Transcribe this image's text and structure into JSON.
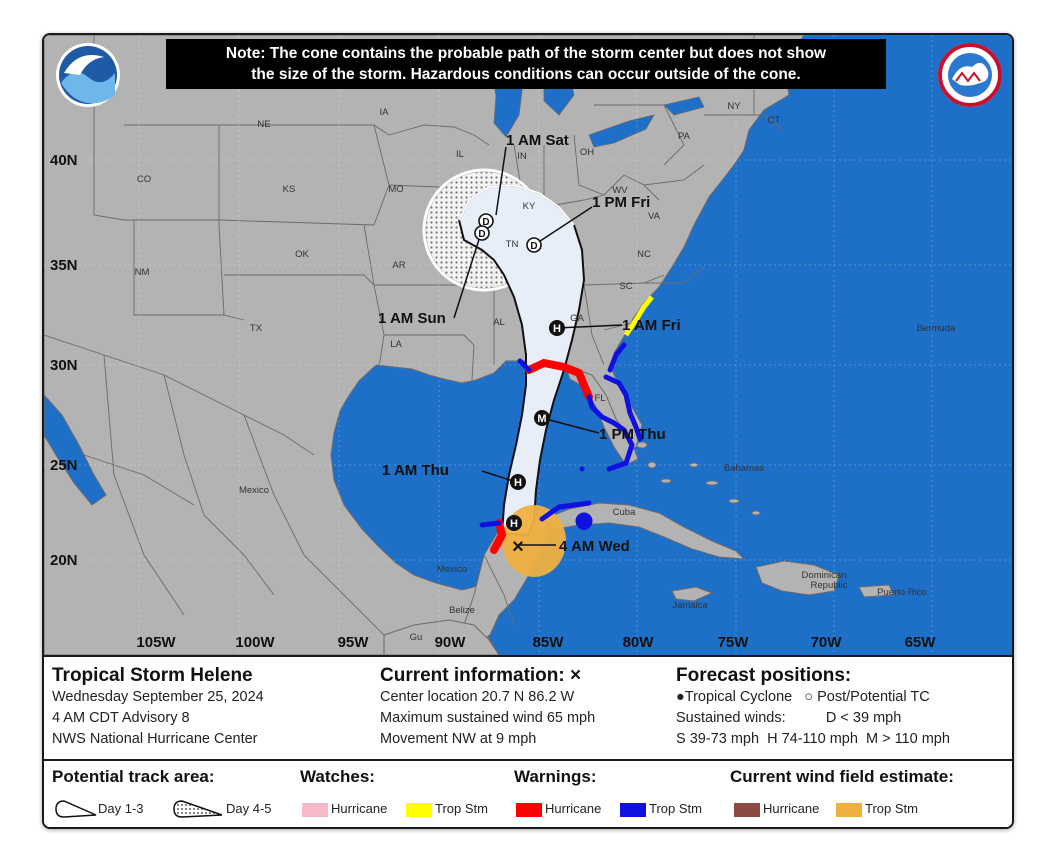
{
  "note": {
    "line1": "Note: The cone contains the probable path of the storm center but does not show",
    "line2": "the size of the storm. Hazardous conditions can occur outside of the cone."
  },
  "latitudes": [
    "40N",
    "35N",
    "30N",
    "25N",
    "20N"
  ],
  "longitudes": [
    "105W",
    "100W",
    "95W",
    "90W",
    "85W",
    "80W",
    "75W",
    "70W",
    "65W"
  ],
  "states": [
    "NE",
    "IA",
    "IL",
    "IN",
    "OH",
    "PA",
    "NY",
    "CT",
    "CO",
    "KS",
    "MO",
    "KY",
    "WV",
    "VA",
    "NM",
    "OK",
    "AR",
    "TN",
    "NC",
    "SC",
    "TX",
    "LA",
    "AL",
    "GA",
    "FL"
  ],
  "places": {
    "mexico": "Mexico",
    "mexico_small": "Mexico",
    "cuba": "Cuba",
    "bahamas": "Bahamas",
    "dominican": "Dominican",
    "republic": "Republic",
    "puerto_rico": "Puerto Rico",
    "jamaica": "Jamaica",
    "bermuda": "Bermuda",
    "belize": "Belize",
    "guatemala": "Gu"
  },
  "points": {
    "p1": "1 AM Sat",
    "p2": "1 PM Fri",
    "p3": "1 AM Sun",
    "p4": "1 AM Fri",
    "p5": "1 PM Thu",
    "p6": "1 AM Thu",
    "p7": "4 AM Wed"
  },
  "markers": {
    "hurricane": "H",
    "major": "M",
    "dissipated": "D"
  },
  "storm": {
    "name": "Tropical Storm Helene",
    "date": "Wednesday September 25, 2024",
    "advisory": "4 AM CDT Advisory 8",
    "center": "NWS National Hurricane Center"
  },
  "current": {
    "header": "Current information:",
    "symbol": "×",
    "location": "Center location 20.7 N 86.2 W",
    "wind": "Maximum sustained wind 65 mph",
    "movement": "Movement NW at 9 mph"
  },
  "forecast": {
    "header": "Forecast positions:",
    "tc": "Tropical Cyclone",
    "ptc": "Post/Potential TC",
    "winds_label": "Sustained winds:",
    "d": "D < 39 mph",
    "s": "S 39-73 mph",
    "h": "H 74-110 mph",
    "m": "M > 110 mph"
  },
  "legend": {
    "track_header": "Potential track area:",
    "day13": "Day 1-3",
    "day45": "Day 4-5",
    "watches_header": "Watches:",
    "watch_hurricane": "Hurricane",
    "watch_trop": "Trop Stm",
    "warnings_header": "Warnings:",
    "warn_hurricane": "Hurricane",
    "warn_trop": "Trop Stm",
    "wind_header": "Current wind field estimate:",
    "wind_hurricane": "Hurricane",
    "wind_trop": "Trop Stm"
  },
  "colors": {
    "ocean": "#1e6fc8",
    "land": "#b3b3b3",
    "cone": "#e8eef8",
    "watch_hurricane": "#f7b8c8",
    "watch_trop": "#ffff00",
    "warn_hurricane": "#ff0000",
    "warn_trop": "#1010e0",
    "wind_hurricane": "#8b4a42",
    "wind_trop": "#f0b040"
  }
}
